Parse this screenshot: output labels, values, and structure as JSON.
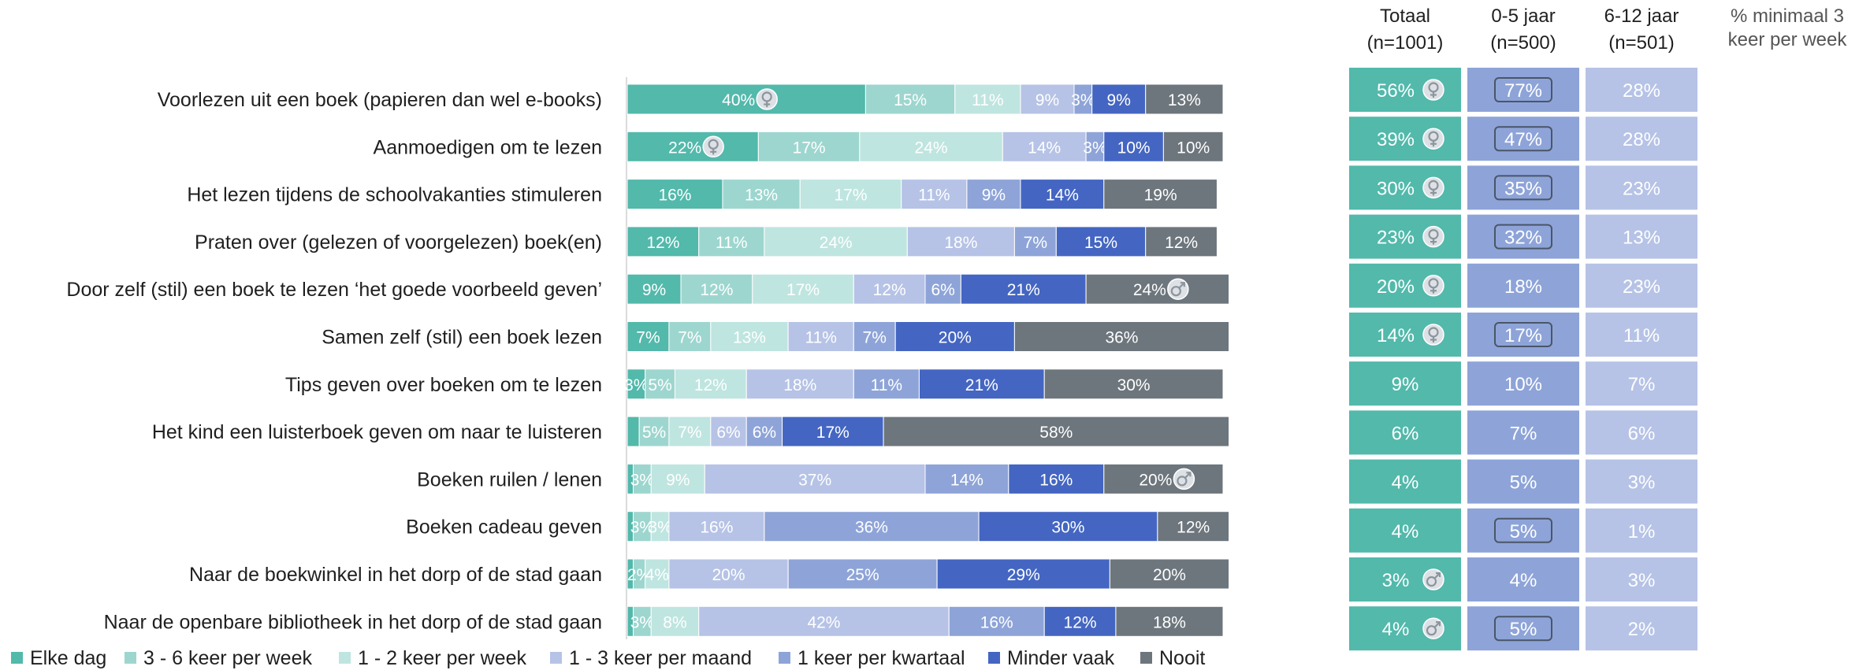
{
  "chart_data": {
    "type": "bar",
    "orientation": "horizontal-stacked-100",
    "categories": [
      "Voorlezen uit een boek (papieren dan wel e-books)",
      "Aanmoedigen om te lezen",
      "Het lezen tijdens de schoolvakanties stimuleren",
      "Praten over (gelezen of voorgelezen) boek(en)",
      "Door zelf (stil) een boek te lezen ‘het goede voorbeeld geven’",
      "Samen zelf (stil) een boek lezen",
      "Tips geven over boeken om te lezen",
      "Het kind een luisterboek geven om naar te luisteren",
      "Boeken ruilen / lenen",
      "Boeken cadeau geven",
      "Naar de boekwinkel in het dorp of de stad gaan",
      "Naar de openbare bibliotheek in het dorp of de stad gaan"
    ],
    "series": [
      {
        "name": "Elke dag",
        "color": "#52b9ab",
        "values": [
          40,
          22,
          16,
          12,
          9,
          7,
          3,
          2,
          1,
          1,
          1,
          1
        ]
      },
      {
        "name": "3 - 6 keer per week",
        "color": "#9dd6cf",
        "values": [
          15,
          17,
          13,
          11,
          12,
          7,
          5,
          5,
          3,
          3,
          2,
          3
        ]
      },
      {
        "name": "1 - 2 keer per week",
        "color": "#bfe5e0",
        "values": [
          11,
          24,
          17,
          24,
          17,
          13,
          12,
          7,
          9,
          3,
          4,
          8
        ]
      },
      {
        "name": "1 - 3 keer per maand",
        "color": "#b6c3e6",
        "values": [
          9,
          14,
          11,
          18,
          12,
          11,
          18,
          6,
          37,
          16,
          20,
          42
        ]
      },
      {
        "name": "1 keer per kwartaal",
        "color": "#8ea4d8",
        "values": [
          3,
          3,
          9,
          7,
          6,
          7,
          11,
          6,
          14,
          36,
          25,
          16
        ]
      },
      {
        "name": "Minder vaak",
        "color": "#4466c2",
        "values": [
          9,
          10,
          14,
          15,
          21,
          20,
          21,
          17,
          16,
          30,
          29,
          12
        ]
      },
      {
        "name": "Nooit",
        "color": "#6d767d",
        "values": [
          13,
          10,
          19,
          12,
          24,
          36,
          30,
          58,
          20,
          12,
          20,
          18
        ]
      }
    ],
    "segment_labels": [
      [
        "40%",
        "15%",
        "11%",
        "9%",
        "3%",
        "9%",
        "13%"
      ],
      [
        "22%",
        "17%",
        "24%",
        "14%",
        "3%",
        "10%",
        "10%"
      ],
      [
        "16%",
        "13%",
        "17%",
        "11%",
        "9%",
        "14%",
        "19%"
      ],
      [
        "12%",
        "11%",
        "24%",
        "18%",
        "7%",
        "15%",
        "12%"
      ],
      [
        "9%",
        "12%",
        "17%",
        "12%",
        "6%",
        "21%",
        "24%"
      ],
      [
        "7%",
        "7%",
        "13%",
        "11%",
        "7%",
        "20%",
        "36%"
      ],
      [
        "3%",
        "5%",
        "12%",
        "18%",
        "11%",
        "21%",
        "30%"
      ],
      [
        "",
        "5%",
        "7%",
        "6%",
        "6%",
        "17%",
        "58%"
      ],
      [
        "",
        "3%",
        "9%",
        "37%",
        "14%",
        "16%",
        "20%"
      ],
      [
        "",
        "3%",
        "3%",
        "16%",
        "36%",
        "30%",
        "12%"
      ],
      [
        "",
        "2%",
        "4%",
        "20%",
        "25%",
        "29%",
        "20%"
      ],
      [
        "",
        "3%",
        "8%",
        "42%",
        "16%",
        "12%",
        "18%"
      ]
    ],
    "segment_markers": [
      {
        "row": 0,
        "series": 0,
        "icon": "female-icon"
      },
      {
        "row": 1,
        "series": 0,
        "icon": "female-icon"
      },
      {
        "row": 4,
        "series": 6,
        "icon": "male-icon"
      },
      {
        "row": 8,
        "series": 6,
        "icon": "male-icon"
      }
    ],
    "legend": {
      "placement": "bottom"
    },
    "xlim": [
      0,
      100
    ],
    "table": {
      "title": "% minimaal 3 keer per week",
      "columns": [
        {
          "label": "Totaal",
          "sublabel": "(n=1001)",
          "color": "#52b9ab",
          "values": [
            "56%",
            "39%",
            "30%",
            "23%",
            "20%",
            "14%",
            "9%",
            "6%",
            "4%",
            "4%",
            "3%",
            "4%"
          ]
        },
        {
          "label": "0-5 jaar",
          "sublabel": "(n=500)",
          "color": "#8ea4d8",
          "values": [
            "77%",
            "47%",
            "35%",
            "32%",
            "18%",
            "17%",
            "10%",
            "7%",
            "5%",
            "5%",
            "4%",
            "5%"
          ]
        },
        {
          "label": "6-12 jaar",
          "sublabel": "(n=501)",
          "color": "#b6c3e6",
          "values": [
            "28%",
            "28%",
            "23%",
            "13%",
            "23%",
            "11%",
            "7%",
            "6%",
            "3%",
            "1%",
            "3%",
            "2%"
          ]
        }
      ],
      "highlighted_cells": [
        {
          "col": 1,
          "row": 0
        },
        {
          "col": 1,
          "row": 1
        },
        {
          "col": 1,
          "row": 2
        },
        {
          "col": 1,
          "row": 3
        },
        {
          "col": 1,
          "row": 5
        },
        {
          "col": 1,
          "row": 9
        },
        {
          "col": 1,
          "row": 11
        }
      ],
      "cell_markers": [
        {
          "col": 0,
          "row": 0,
          "icon": "female-icon"
        },
        {
          "col": 0,
          "row": 1,
          "icon": "female-icon"
        },
        {
          "col": 0,
          "row": 2,
          "icon": "female-icon"
        },
        {
          "col": 0,
          "row": 3,
          "icon": "female-icon"
        },
        {
          "col": 0,
          "row": 4,
          "icon": "female-icon"
        },
        {
          "col": 0,
          "row": 5,
          "icon": "female-icon"
        },
        {
          "col": 0,
          "row": 10,
          "icon": "male-icon"
        },
        {
          "col": 0,
          "row": 11,
          "icon": "male-icon"
        }
      ]
    }
  }
}
